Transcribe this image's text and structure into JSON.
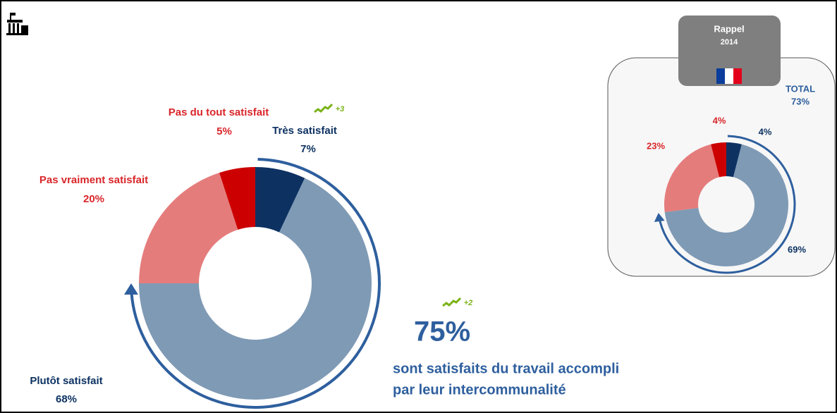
{
  "chart_data": [
    {
      "type": "donut",
      "categories": [
        "Très satisfait",
        "Plutôt satisfait",
        "Pas vraiment satisfait",
        "Pas du tout satisfait"
      ],
      "values": [
        7,
        68,
        20,
        5
      ],
      "value_labels": [
        "7%",
        "68%",
        "20%",
        "5%"
      ],
      "colors": [
        "#0d3262",
        "#7f9ab5",
        "#e57c7c",
        "#cc0000"
      ],
      "trend": {
        "value": 3,
        "label": "+3"
      },
      "summary": {
        "value": 75,
        "label": "75%",
        "trend": {
          "value": 2,
          "label": "+2"
        }
      },
      "subtitle": [
        "sont satisfaits du travail accompli",
        "par leur intercommunalité"
      ]
    },
    {
      "type": "donut",
      "title": "Rappel",
      "year": "2014",
      "values": [
        4,
        69,
        23,
        4
      ],
      "value_labels": [
        "4%",
        "69%",
        "23%",
        "4%"
      ],
      "colors": [
        "#0d3262",
        "#7f9ab5",
        "#e57c7c",
        "#cc0000"
      ],
      "total": {
        "text": "TOTAL",
        "value": 73,
        "label": "73%"
      }
    }
  ]
}
